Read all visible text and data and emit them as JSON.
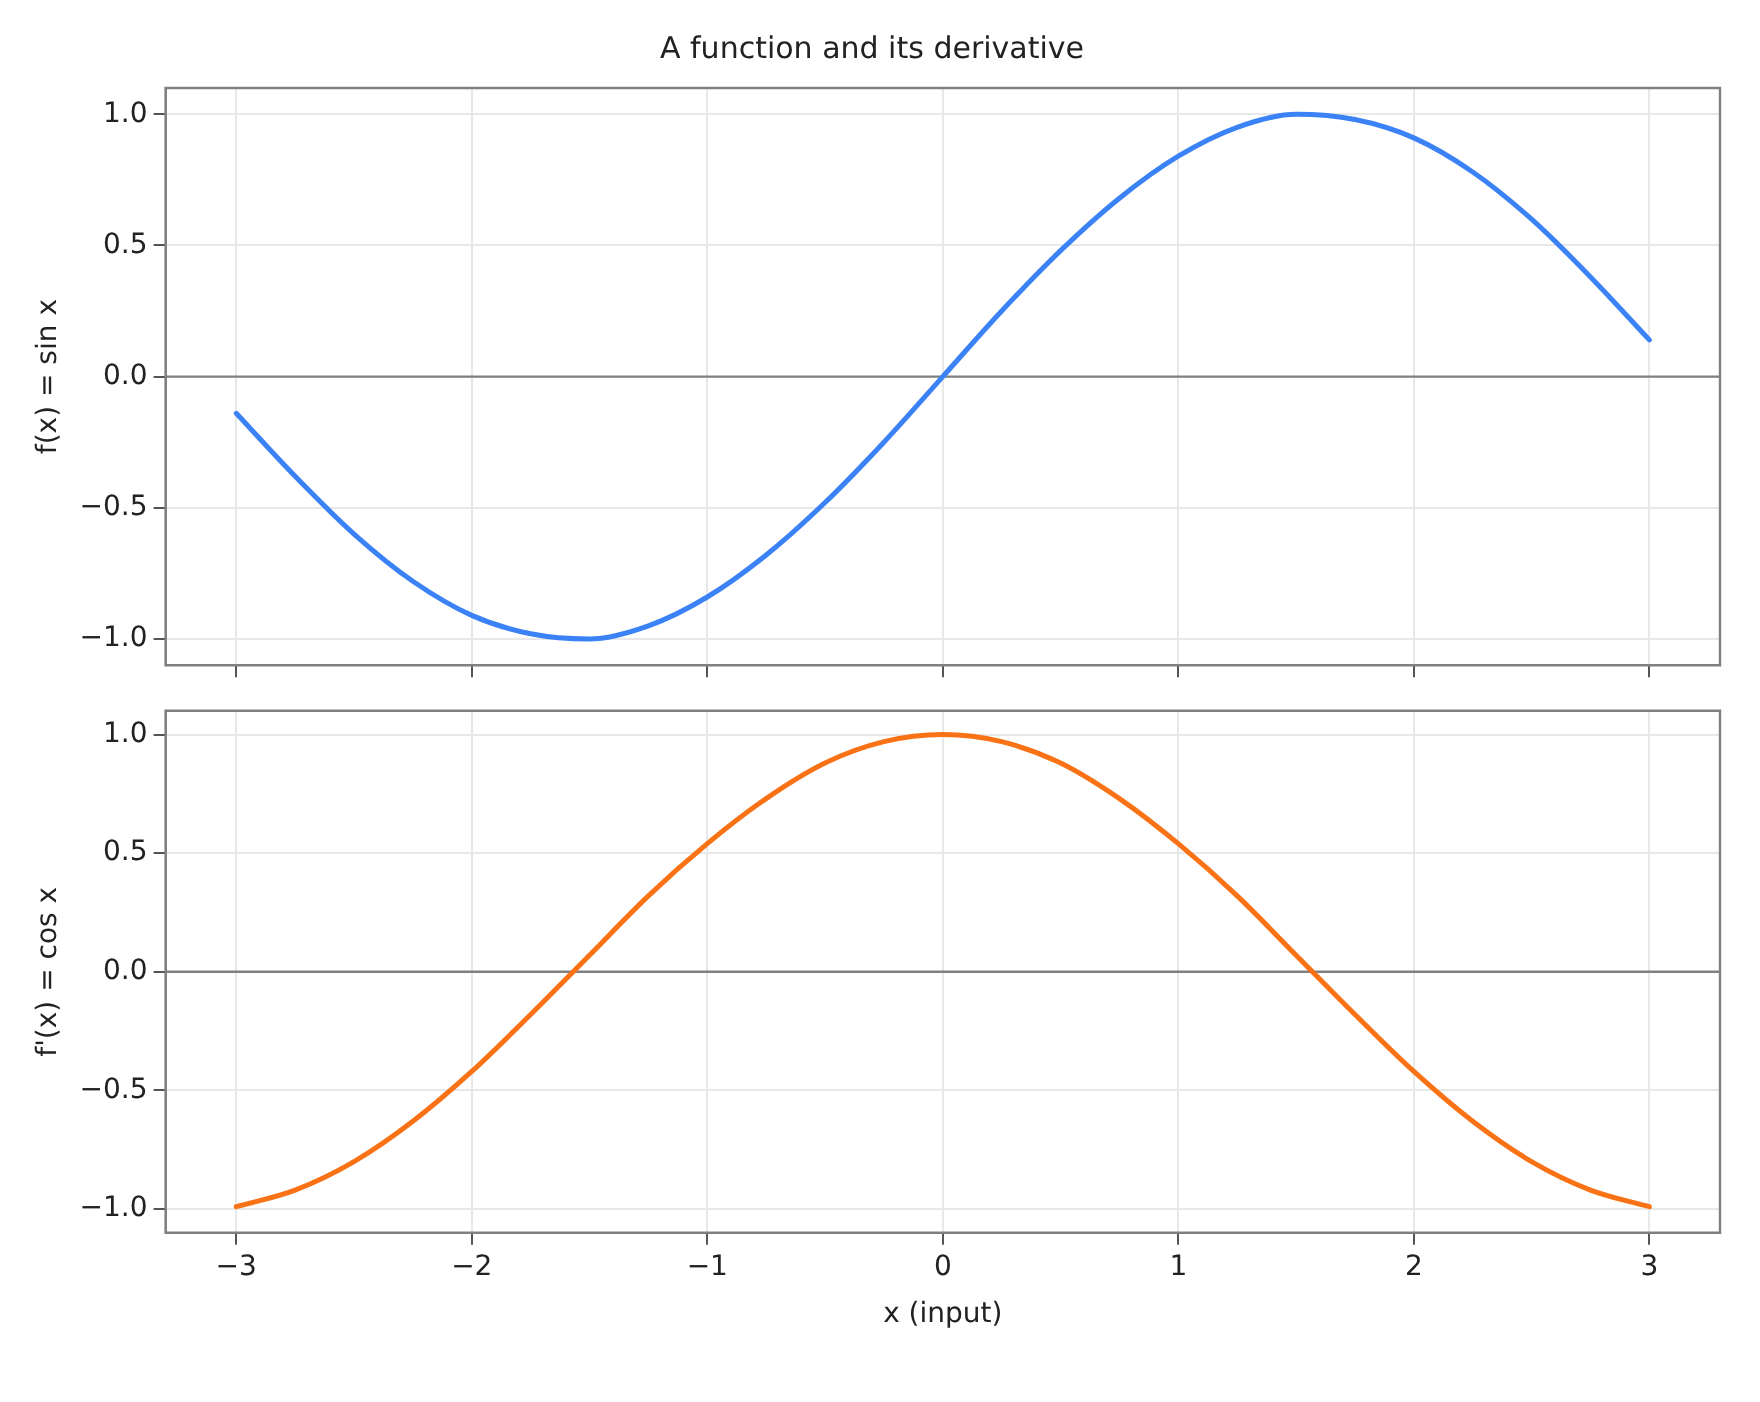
{
  "chart_data": [
    {
      "type": "line",
      "title": "A function and its derivative",
      "ylabel": "f(x) = sin x",
      "x": [
        -3,
        -2.75,
        -2.5,
        -2.25,
        -2,
        -1.75,
        -1.5,
        -1.25,
        -1,
        -0.75,
        -0.5,
        -0.25,
        0,
        0.25,
        0.5,
        0.75,
        1,
        1.25,
        1.5,
        1.75,
        2,
        2.25,
        2.5,
        2.75,
        3
      ],
      "series": [
        {
          "color": "#3b82f6",
          "values": [
            -0.14,
            -0.38,
            -0.6,
            -0.78,
            -0.91,
            -0.98,
            -1.0,
            -0.95,
            -0.84,
            -0.68,
            -0.48,
            -0.25,
            0,
            0.25,
            0.48,
            0.68,
            0.84,
            0.95,
            1.0,
            0.98,
            0.91,
            0.78,
            0.6,
            0.38,
            0.14
          ]
        }
      ],
      "xlim": [
        -3.3,
        3.3
      ],
      "ylim": [
        -1.1,
        1.1
      ],
      "xticks": [
        {
          "value": -3,
          "label": null
        },
        {
          "value": -2,
          "label": null
        },
        {
          "value": -1,
          "label": null
        },
        {
          "value": 0,
          "label": null
        },
        {
          "value": 1,
          "label": null
        },
        {
          "value": 2,
          "label": null
        },
        {
          "value": 3,
          "label": null
        }
      ],
      "yticks": [
        {
          "value": -1,
          "label": "−1.0"
        },
        {
          "value": -0.5,
          "label": "−0.5"
        },
        {
          "value": 0,
          "label": "0.0"
        },
        {
          "value": 0.5,
          "label": "0.5"
        },
        {
          "value": 1,
          "label": "1.0"
        }
      ],
      "ref_lines": [
        {
          "axis": "y",
          "value": 0,
          "color": "#808080"
        }
      ],
      "grid": true,
      "legend": false,
      "marker": "none",
      "line_style": "solid",
      "tick_labels": "y"
    },
    {
      "type": "line",
      "ylabel": "f'(x) = cos x",
      "xlabel": "x (input)",
      "x": [
        -3,
        -2.75,
        -2.5,
        -2.25,
        -2,
        -1.75,
        -1.5,
        -1.25,
        -1,
        -0.75,
        -0.5,
        -0.25,
        0,
        0.25,
        0.5,
        0.75,
        1,
        1.25,
        1.5,
        1.75,
        2,
        2.25,
        2.5,
        2.75,
        3
      ],
      "series": [
        {
          "color": "#f97316",
          "values": [
            -0.99,
            -0.92,
            -0.8,
            -0.63,
            -0.42,
            -0.18,
            0.07,
            0.32,
            0.54,
            0.73,
            0.88,
            0.97,
            1.0,
            0.97,
            0.88,
            0.73,
            0.54,
            0.32,
            0.07,
            -0.18,
            -0.42,
            -0.63,
            -0.8,
            -0.92,
            -0.99
          ]
        }
      ],
      "xlim": [
        -3.3,
        3.3
      ],
      "ylim": [
        -1.1,
        1.1
      ],
      "xticks": [
        {
          "value": -3,
          "label": "−3"
        },
        {
          "value": -2,
          "label": "−2"
        },
        {
          "value": -1,
          "label": "−1"
        },
        0,
        1,
        2,
        3
      ],
      "yticks": [
        {
          "value": -1,
          "label": "−1.0"
        },
        {
          "value": -0.5,
          "label": "−0.5"
        },
        {
          "value": 0,
          "label": "0.0"
        },
        {
          "value": 0.5,
          "label": "0.5"
        },
        {
          "value": 1,
          "label": "1.0"
        }
      ],
      "ref_lines": [
        {
          "axis": "y",
          "value": 0,
          "color": "#808080"
        }
      ],
      "grid": true,
      "legend": false,
      "marker": "none",
      "line_style": "solid"
    }
  ]
}
